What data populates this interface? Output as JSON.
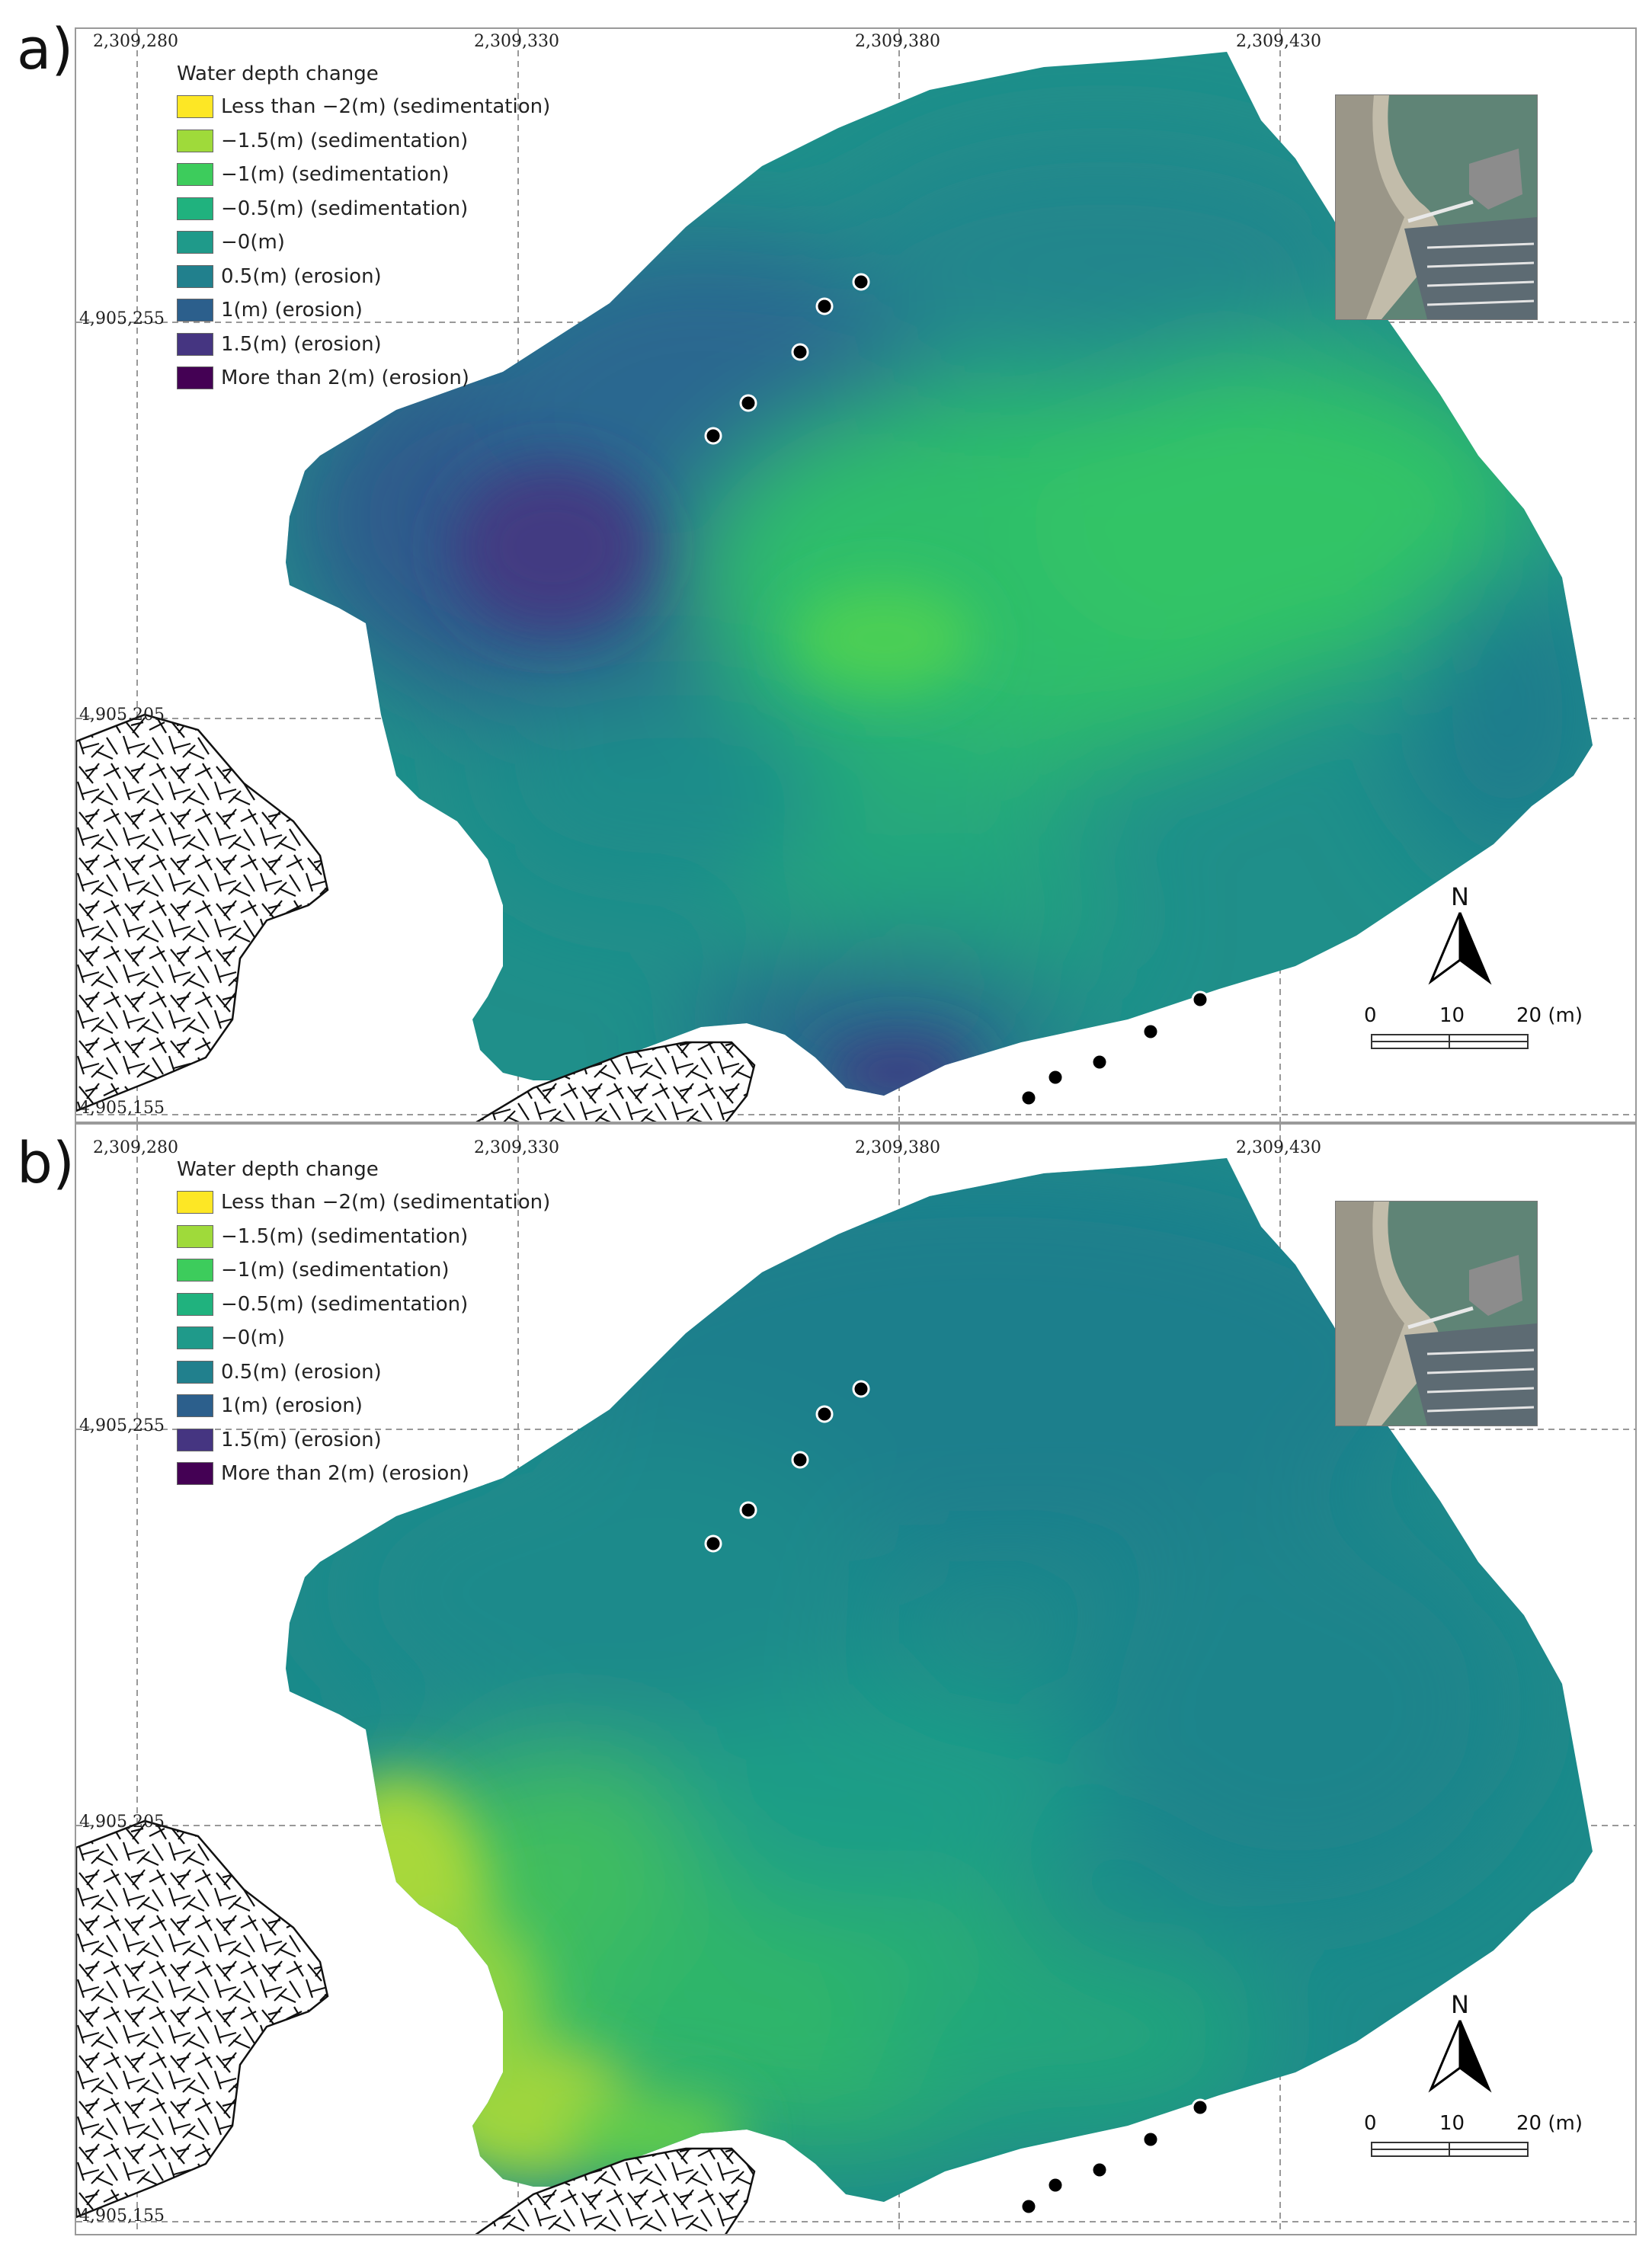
{
  "panels": [
    {
      "label": "a)",
      "legend_title": "Water depth change",
      "x_ticks": [
        "2,309,280",
        "2,309,330",
        "2,309,380",
        "2,309,430"
      ],
      "y_ticks": [
        "4,905,255",
        "4,905,205",
        "4,905,155"
      ],
      "scale_labels": [
        "0",
        "10",
        "20 (m)"
      ],
      "north_label": "N"
    },
    {
      "label": "b)",
      "legend_title": "Water depth change",
      "x_ticks": [
        "2,309,280",
        "2,309,330",
        "2,309,380",
        "2,309,430"
      ],
      "y_ticks": [
        "4,905,255",
        "4,905,205",
        "4,905,155"
      ],
      "scale_labels": [
        "0",
        "10",
        "20 (m)"
      ],
      "north_label": "N"
    }
  ],
  "legend_items": [
    {
      "label": "Less than −2(m) (sedimentation)",
      "color": "#fde725"
    },
    {
      "label": "−1.5(m) (sedimentation)",
      "color": "#9fda3a"
    },
    {
      "label": "−1(m) (sedimentation)",
      "color": "#3dcc5c"
    },
    {
      "label": "−0.5(m) (sedimentation)",
      "color": "#20b27e"
    },
    {
      "label": "−0(m)",
      "color": "#1f9a8a"
    },
    {
      "label": "0.5(m) (erosion)",
      "color": "#21808d"
    },
    {
      "label": "1(m) (erosion)",
      "color": "#2c5f8c"
    },
    {
      "label": "1.5(m) (erosion)",
      "color": "#453581"
    },
    {
      "label": "More than 2(m) (erosion)",
      "color": "#440154"
    }
  ]
}
